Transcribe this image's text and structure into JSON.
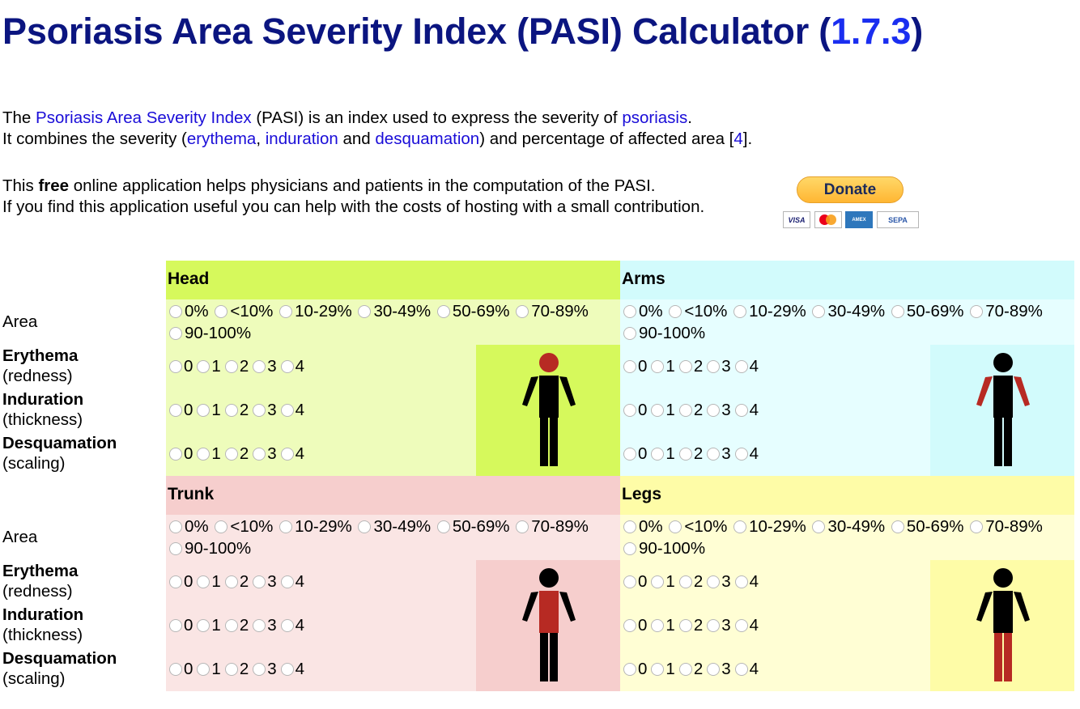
{
  "header": {
    "title_prefix": "Psoriasis Area Severity Index (PASI) Calculator (",
    "version": "1.7.3",
    "title_suffix": ")"
  },
  "intro": {
    "the": "The ",
    "pasi_link": "Psoriasis Area Severity Index",
    "line1_mid": " (PASI) is an index used to express the severity of ",
    "psoriasis_link": "psoriasis",
    "line1_end": ".",
    "line2_start": "It combines the severity (",
    "erythema_link": "erythema",
    "comma": ", ",
    "induration_link": "induration",
    "and": " and ",
    "desquamation_link": "desquamation",
    "line2_mid": ") and percentage of affected area [",
    "ref_link": "4",
    "line2_end": "]."
  },
  "promo": {
    "this": "This ",
    "free": "free",
    "line1_rest": " online application helps physicians and patients in the computation of the PASI.",
    "line2": "If you find this application useful you can help with the costs of hosting with a small contribution."
  },
  "donate": {
    "label": "Donate",
    "cards": [
      "VISA",
      "",
      "AMEX",
      "SEPA"
    ]
  },
  "row_labels": {
    "area": "Area",
    "erythema": "Erythema",
    "erythema_sub": "(redness)",
    "induration": "Induration",
    "induration_sub": "(thickness)",
    "desquamation": "Desquamation",
    "desquamation_sub": "(scaling)"
  },
  "area_options": [
    "0%",
    "<10%",
    "10-29%",
    "30-49%",
    "50-69%",
    "70-89%",
    "90-100%"
  ],
  "severity_options": [
    "0",
    "1",
    "2",
    "3",
    "4"
  ],
  "regions": [
    {
      "name": "Head",
      "head_color": "#d6f95c",
      "body_color": "#eefcbb",
      "highlight": "head"
    },
    {
      "name": "Arms",
      "head_color": "#d2fbfc",
      "body_color": "#e6feff",
      "highlight": "arms"
    },
    {
      "name": "Trunk",
      "head_color": "#f6cecd",
      "body_color": "#fae5e4",
      "highlight": "trunk"
    },
    {
      "name": "Legs",
      "head_color": "#fefca7",
      "body_color": "#fffed4",
      "highlight": "legs"
    }
  ],
  "colors": {
    "highlight": "#b72a23",
    "figure": "#000000"
  }
}
